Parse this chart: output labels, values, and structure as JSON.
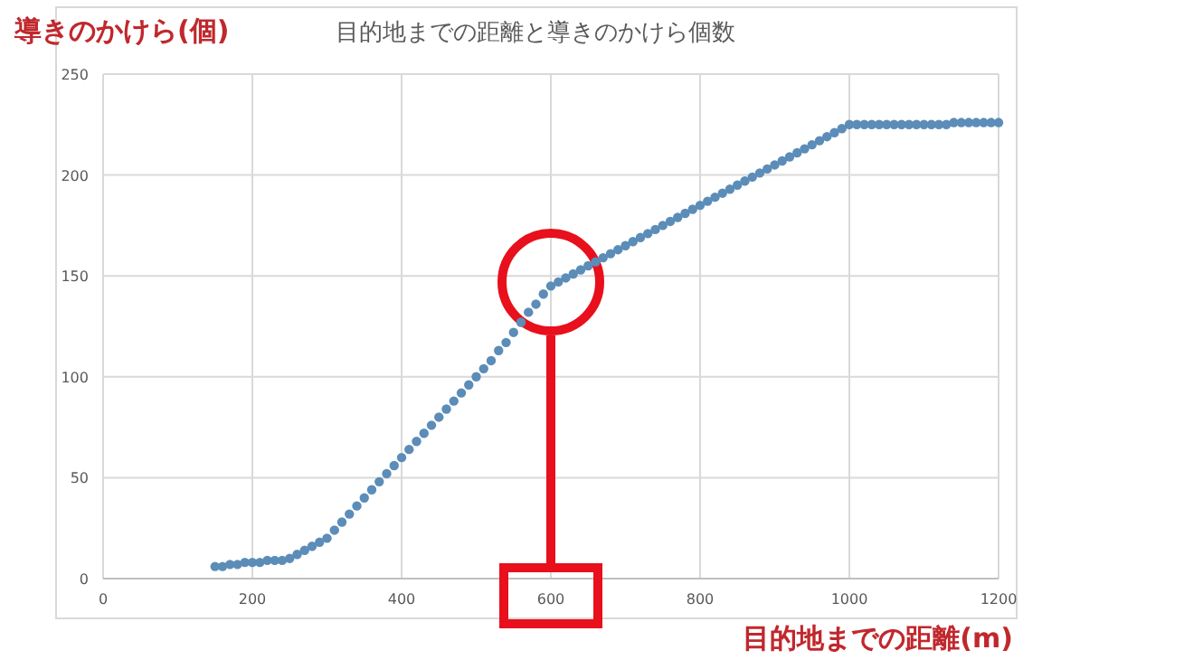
{
  "chart_data": {
    "type": "scatter",
    "title": "目的地までの距離と導きのかけら個数",
    "xlabel": "目的地までの距離(m)",
    "ylabel": "導きのかけら(個)",
    "xlim": [
      0,
      1200
    ],
    "xticks": [
      0,
      200,
      400,
      600,
      800,
      1000,
      1200
    ],
    "ylim": [
      0,
      250
    ],
    "yticks": [
      0,
      50,
      100,
      150,
      200,
      250
    ],
    "grid": true,
    "marker": "circle",
    "series": [
      {
        "color": "#5b8db8",
        "x": [
          150,
          160,
          170,
          180,
          190,
          200,
          210,
          220,
          230,
          240,
          250,
          260,
          270,
          280,
          290,
          300,
          310,
          320,
          330,
          340,
          350,
          360,
          370,
          380,
          390,
          400,
          410,
          420,
          430,
          440,
          450,
          460,
          470,
          480,
          490,
          500,
          510,
          520,
          530,
          540,
          550,
          560,
          570,
          580,
          590,
          600,
          610,
          620,
          630,
          640,
          650,
          660,
          670,
          680,
          690,
          700,
          710,
          720,
          730,
          740,
          750,
          760,
          770,
          780,
          790,
          800,
          810,
          820,
          830,
          840,
          850,
          860,
          870,
          880,
          890,
          900,
          910,
          920,
          930,
          940,
          950,
          960,
          970,
          980,
          990,
          1000,
          1010,
          1020,
          1030,
          1040,
          1050,
          1060,
          1070,
          1080,
          1090,
          1100,
          1110,
          1120,
          1130,
          1140,
          1150,
          1160,
          1170,
          1180,
          1190,
          1200
        ],
        "values": [
          6,
          6,
          7,
          7,
          8,
          8,
          8,
          9,
          9,
          9,
          10,
          12,
          14,
          16,
          18,
          20,
          24,
          28,
          32,
          36,
          40,
          44,
          48,
          52,
          56,
          60,
          64,
          68,
          72,
          76,
          80,
          84,
          88,
          92,
          96,
          100,
          104,
          108,
          113,
          117,
          122,
          127,
          132,
          136,
          141,
          145,
          147,
          149,
          151,
          153,
          155,
          157,
          159,
          161,
          163,
          165,
          167,
          169,
          171,
          173,
          175,
          177,
          179,
          181,
          183,
          185,
          187,
          189,
          191,
          193,
          195,
          197,
          199,
          201,
          203,
          205,
          207,
          209,
          211,
          213,
          215,
          217,
          219,
          221,
          223,
          225,
          225,
          225,
          225,
          225,
          225,
          225,
          225,
          225,
          225,
          225,
          225,
          225,
          225,
          226,
          226,
          226,
          226,
          226,
          226,
          226
        ]
      }
    ]
  }
}
